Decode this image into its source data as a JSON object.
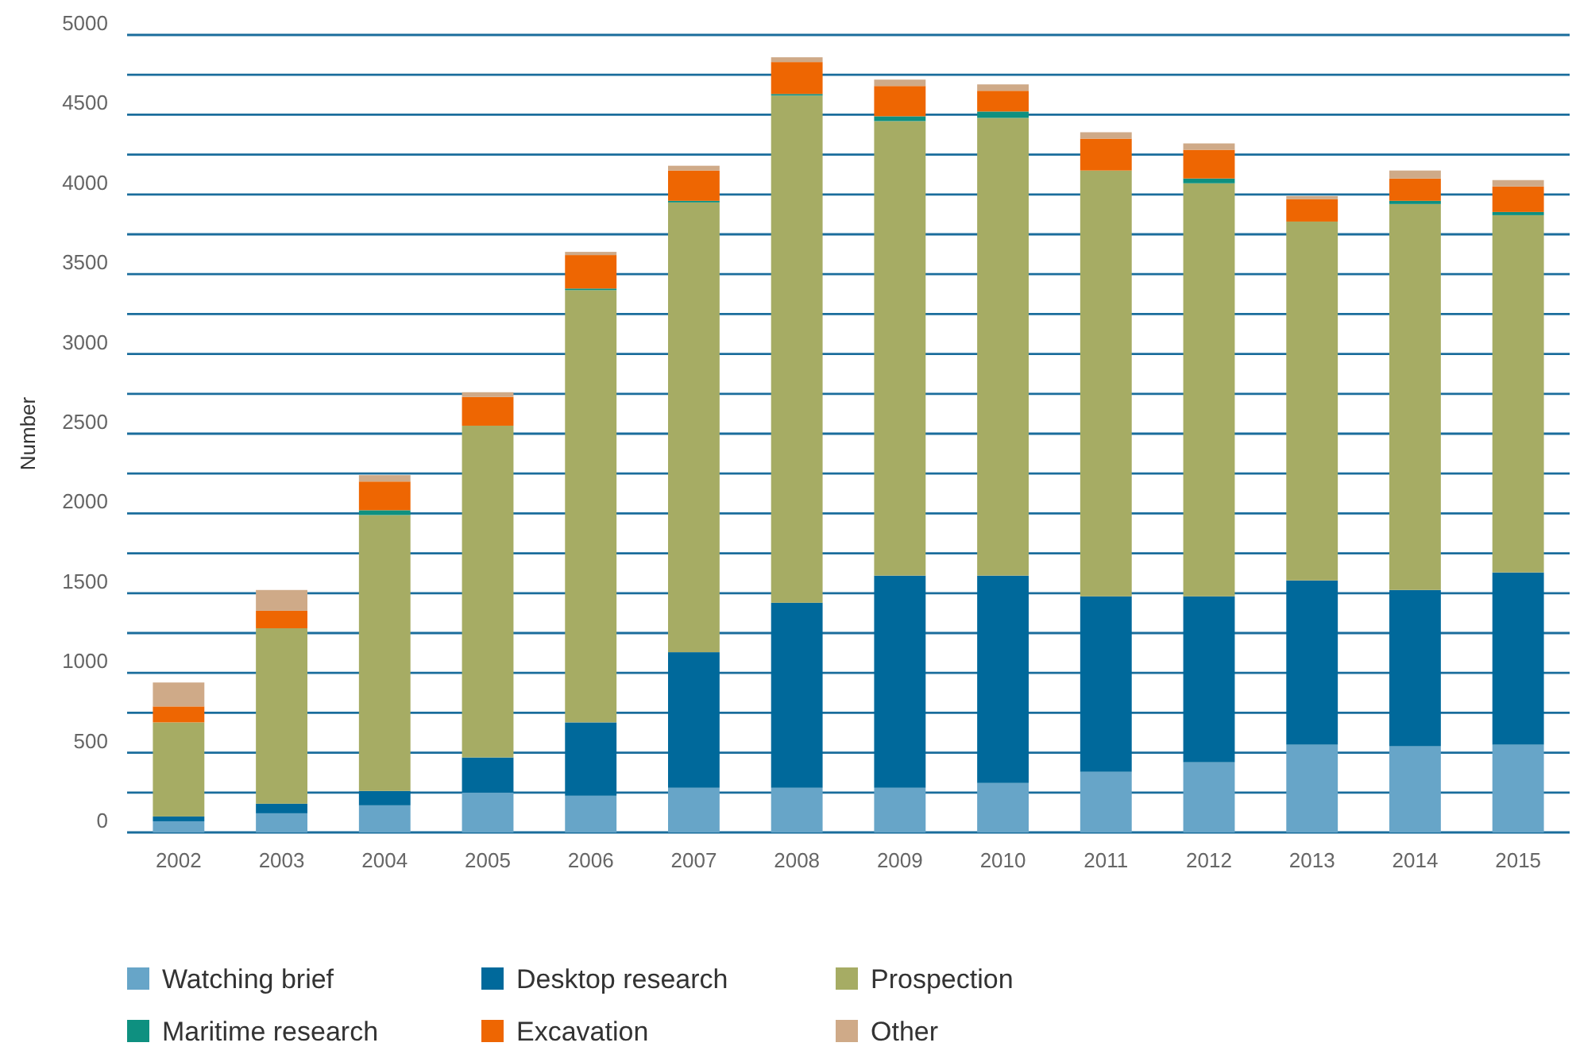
{
  "chart_data": {
    "type": "bar",
    "stacked": true,
    "ylabel": "Number",
    "categories": [
      "2002",
      "2003",
      "2004",
      "2005",
      "2006",
      "2007",
      "2008",
      "2009",
      "2010",
      "2011",
      "2012",
      "2013",
      "2014",
      "2015"
    ],
    "series": [
      {
        "name": "Watching brief",
        "color": "#67a5c8",
        "values": [
          70,
          120,
          170,
          250,
          230,
          280,
          280,
          280,
          310,
          380,
          440,
          550,
          540,
          550
        ]
      },
      {
        "name": "Desktop research",
        "color": "#00699b",
        "values": [
          30,
          60,
          90,
          220,
          460,
          850,
          1160,
          1330,
          1300,
          1100,
          1040,
          1030,
          980,
          1080
        ]
      },
      {
        "name": "Prospection",
        "color": "#a6ac64",
        "values": [
          590,
          1100,
          1730,
          2080,
          2710,
          2820,
          3180,
          2850,
          2870,
          2670,
          2590,
          2250,
          2420,
          2240
        ]
      },
      {
        "name": "Maritime research",
        "color": "#0e9080",
        "values": [
          0,
          0,
          30,
          0,
          10,
          10,
          10,
          30,
          40,
          0,
          30,
          0,
          20,
          20
        ]
      },
      {
        "name": "Excavation",
        "color": "#ee6602",
        "values": [
          100,
          110,
          180,
          180,
          210,
          190,
          200,
          190,
          130,
          200,
          180,
          140,
          140,
          160
        ]
      },
      {
        "name": "Other",
        "color": "#cfaa88",
        "values": [
          150,
          130,
          40,
          30,
          20,
          30,
          30,
          40,
          40,
          40,
          40,
          20,
          50,
          40
        ]
      }
    ],
    "ylim": [
      0,
      5000
    ],
    "yticks": [
      0,
      {
        "value": 250,
        "label": null
      },
      500,
      {
        "value": 750,
        "label": null
      },
      1000,
      {
        "value": 1250,
        "label": null
      },
      1500,
      {
        "value": 1750,
        "label": null
      },
      2000,
      {
        "value": 2250,
        "label": null
      },
      2500,
      {
        "value": 2750,
        "label": null
      },
      3000,
      {
        "value": 3250,
        "label": null
      },
      3500,
      {
        "value": 3750,
        "label": null
      },
      4000,
      {
        "value": 4250,
        "label": null
      },
      4500,
      {
        "value": 4750,
        "label": null
      },
      5000
    ],
    "grid": "y",
    "legend": "bottom"
  }
}
